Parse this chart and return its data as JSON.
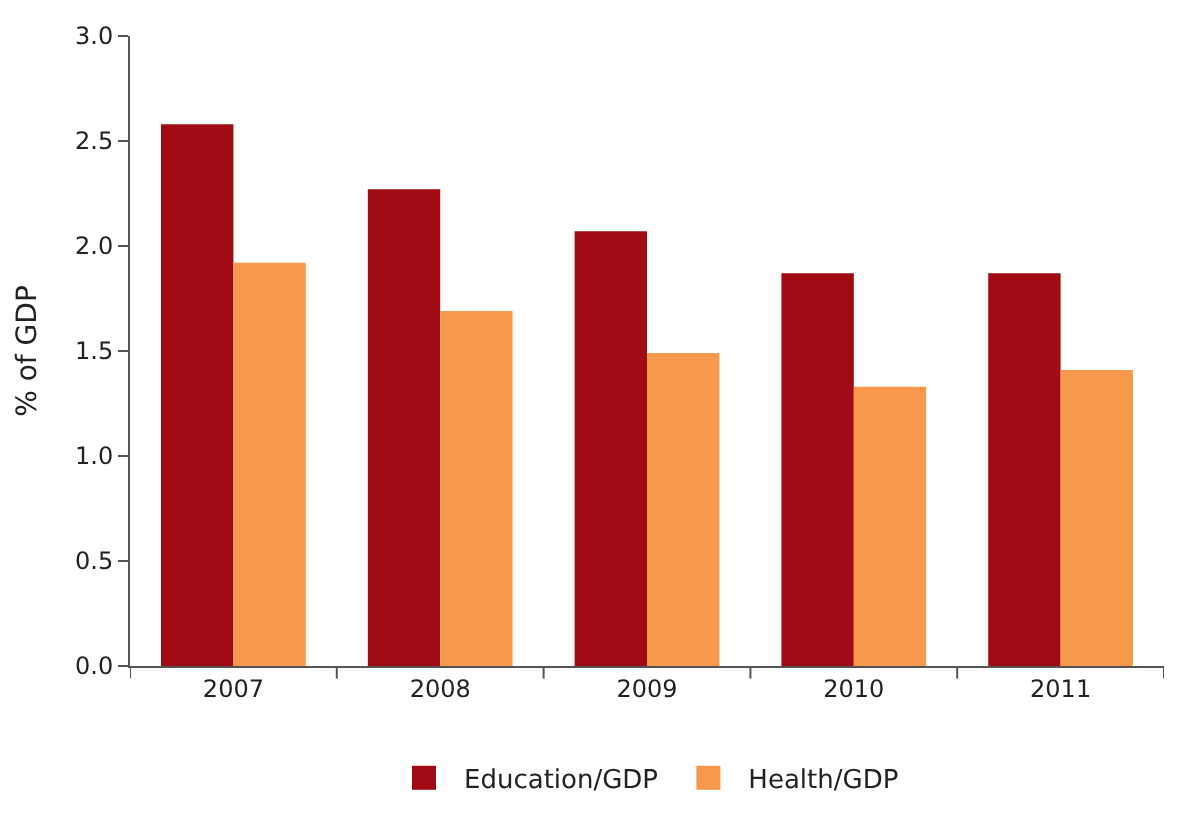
{
  "chart_data": {
    "type": "bar",
    "ylabel": "% of GDP",
    "categories": [
      "2007",
      "2008",
      "2009",
      "2010",
      "2011"
    ],
    "series": [
      {
        "name": "Education/GDP",
        "color": "#a00a12",
        "values": [
          2.58,
          2.27,
          2.07,
          1.87,
          1.87
        ]
      },
      {
        "name": "Health/GDP",
        "color": "#f7984c",
        "values": [
          1.92,
          1.69,
          1.49,
          1.33,
          1.41
        ]
      }
    ],
    "ylim": [
      0,
      3
    ],
    "yticks": [
      {
        "value": 0,
        "label": "0.0"
      },
      {
        "value": 0.5,
        "label": "0.5"
      },
      {
        "value": 1,
        "label": "1.0"
      },
      {
        "value": 1.5,
        "label": "1.5"
      },
      {
        "value": 2,
        "label": "2.0"
      },
      {
        "value": 2.5,
        "label": "2.5"
      },
      {
        "value": 3,
        "label": "3.0"
      }
    ],
    "legend": "bottom"
  }
}
